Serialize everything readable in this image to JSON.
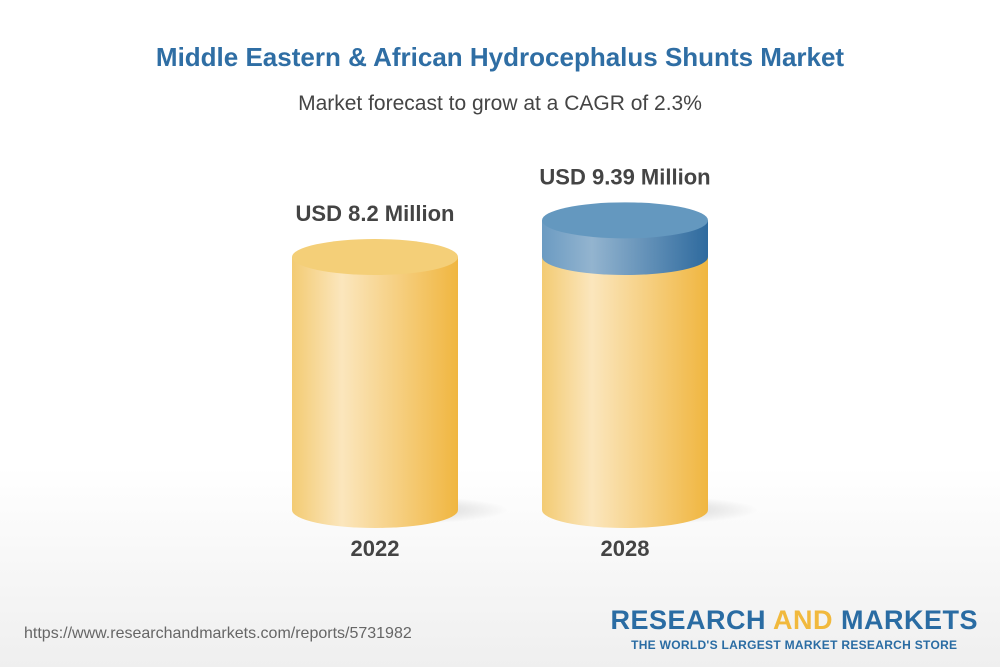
{
  "chart_data": {
    "type": "bar",
    "title": "Middle Eastern & African Hydrocephalus Shunts Market",
    "subtitle": "Market forecast to grow at a CAGR of 2.3%",
    "categories": [
      "2022",
      "2028"
    ],
    "values": [
      8.2,
      9.39
    ],
    "data_labels": [
      "USD 8.2 Million",
      "USD 9.39 Million"
    ],
    "unit": "USD Million",
    "colors": {
      "base": "#f1b93d",
      "growth": "#2f6ea4"
    }
  },
  "footer": {
    "url": "https://www.researchandmarkets.com/reports/5731982",
    "logo_research": "RESEARCH",
    "logo_and": "AND",
    "logo_markets": "MARKETS",
    "logo_tagline": "THE WORLD'S LARGEST MARKET RESEARCH STORE"
  }
}
